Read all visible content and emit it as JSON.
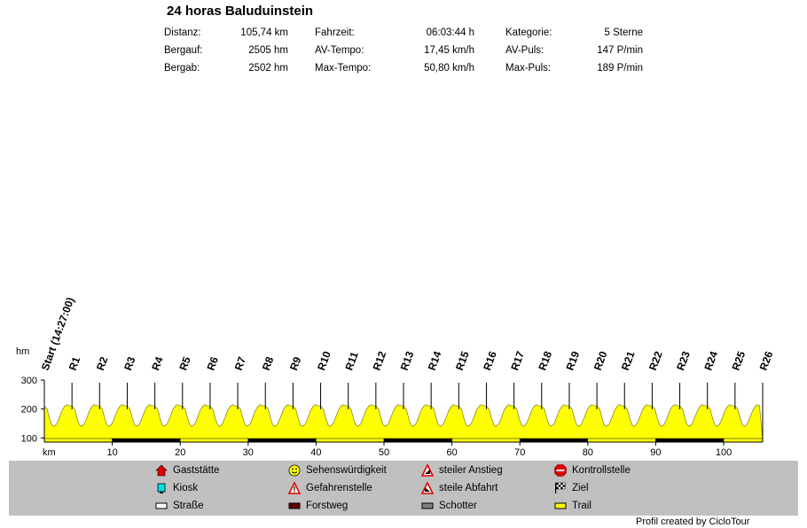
{
  "title": "24 horas Baluduinstein",
  "stats": [
    {
      "label": "Distanz:",
      "value": "105,74 km"
    },
    {
      "label": "Bergauf:",
      "value": "2505 hm"
    },
    {
      "label": "Bergab:",
      "value": "2502 hm"
    },
    {
      "label": "Fahrzeit:",
      "value": "06:03:44 h"
    },
    {
      "label": "AV-Tempo:",
      "value": "17,45 km/h"
    },
    {
      "label": "Max-Tempo:",
      "value": "50,80 km/h"
    },
    {
      "label": "Kategorie:",
      "value": "5 Sterne"
    },
    {
      "label": "AV-Puls:",
      "value": "147 P/min"
    },
    {
      "label": "Max-Puls:",
      "value": "189 P/min"
    }
  ],
  "legend": [
    {
      "label": "Gaststätte",
      "icon": "house-icon"
    },
    {
      "label": "Kiosk",
      "icon": "cup-icon"
    },
    {
      "label": "Straße",
      "icon": "road-swatch"
    },
    {
      "label": "Sehenswürdigkeit",
      "icon": "smiley-icon"
    },
    {
      "label": "Gefahrenstelle",
      "icon": "warning-icon"
    },
    {
      "label": "Forstweg",
      "icon": "forest-swatch"
    },
    {
      "label": "steiler Anstieg",
      "icon": "steep-climb-icon"
    },
    {
      "label": "steile Abfahrt",
      "icon": "steep-descent-icon"
    },
    {
      "label": "Schotter",
      "icon": "gravel-swatch"
    },
    {
      "label": "Kontrollstelle",
      "icon": "stop-icon"
    },
    {
      "label": "Ziel",
      "icon": "checkered-flag-icon"
    },
    {
      "label": "Trail",
      "icon": "trail-swatch"
    }
  ],
  "footer": "Profil created by CicloTour",
  "chart_data": {
    "type": "area",
    "title": "24 horas Baluduinstein",
    "xlabel": "km",
    "ylabel": "hm",
    "xlim": [
      0,
      105.74
    ],
    "ylim": [
      95,
      300
    ],
    "xticks": [
      10,
      20,
      30,
      40,
      50,
      60,
      70,
      80,
      90,
      100
    ],
    "yticks": [
      100,
      200,
      300
    ],
    "fill_color": "#ffff00",
    "laps": 26,
    "lap_km": 4.067,
    "lap_profile": [
      {
        "x": 0.0,
        "y": 210
      },
      {
        "x": 0.4,
        "y": 200
      },
      {
        "x": 0.8,
        "y": 165
      },
      {
        "x": 1.1,
        "y": 145
      },
      {
        "x": 1.4,
        "y": 140
      },
      {
        "x": 1.8,
        "y": 148
      },
      {
        "x": 2.2,
        "y": 170
      },
      {
        "x": 2.6,
        "y": 195
      },
      {
        "x": 3.0,
        "y": 210
      },
      {
        "x": 3.3,
        "y": 215
      },
      {
        "x": 3.6,
        "y": 212
      },
      {
        "x": 4.067,
        "y": 210
      }
    ],
    "markers": [
      "Start (14:27:00)",
      "R1",
      "R2",
      "R3",
      "R4",
      "R5",
      "R6",
      "R7",
      "R8",
      "R9",
      "R10",
      "R11",
      "R12",
      "R13",
      "R14",
      "R15",
      "R16",
      "R17",
      "R18",
      "R19",
      "R20",
      "R21",
      "R22",
      "R23",
      "R24",
      "R25",
      "R26"
    ],
    "surface": [
      {
        "from": 0,
        "to": 10,
        "type": "Trail",
        "color": "#ffff00"
      },
      {
        "from": 10,
        "to": 20,
        "type": "Forstweg",
        "color": "#000000"
      },
      {
        "from": 20,
        "to": 30,
        "type": "Trail",
        "color": "#ffff00"
      },
      {
        "from": 30,
        "to": 40,
        "type": "Forstweg",
        "color": "#000000"
      },
      {
        "from": 40,
        "to": 50,
        "type": "Trail",
        "color": "#ffff00"
      },
      {
        "from": 50,
        "to": 60,
        "type": "Forstweg",
        "color": "#000000"
      },
      {
        "from": 60,
        "to": 70,
        "type": "Trail",
        "color": "#ffff00"
      },
      {
        "from": 70,
        "to": 80,
        "type": "Forstweg",
        "color": "#000000"
      },
      {
        "from": 80,
        "to": 90,
        "type": "Trail",
        "color": "#ffff00"
      },
      {
        "from": 90,
        "to": 100,
        "type": "Forstweg",
        "color": "#000000"
      },
      {
        "from": 100,
        "to": 105.74,
        "type": "Trail",
        "color": "#ffff00"
      }
    ]
  }
}
